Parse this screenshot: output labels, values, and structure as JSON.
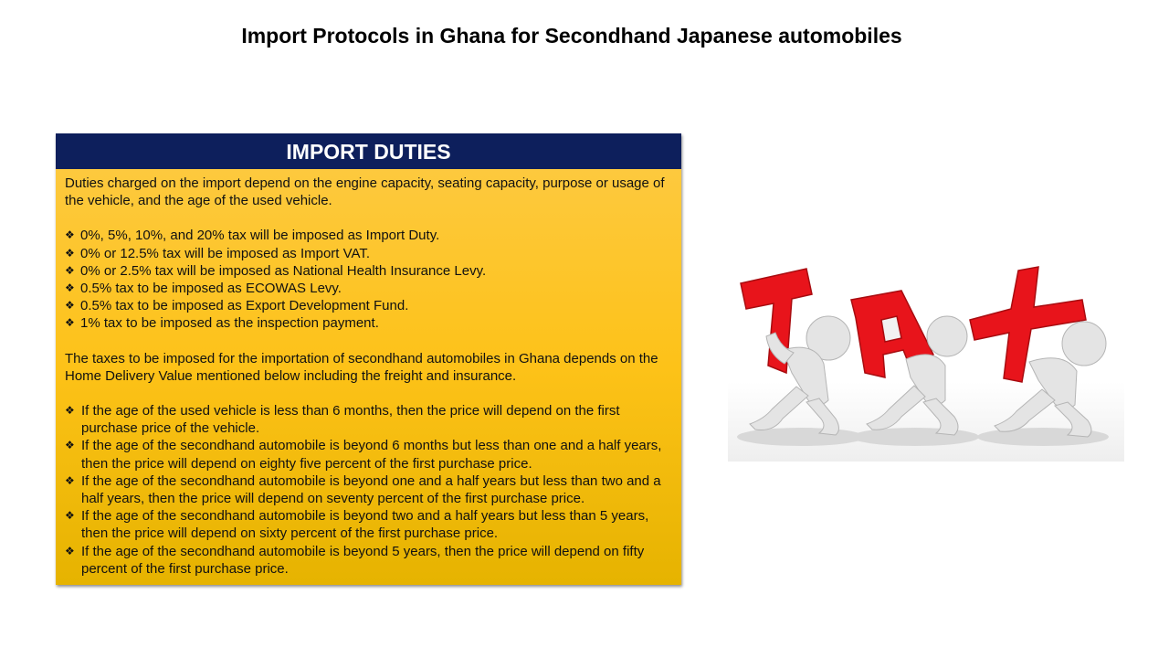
{
  "title": "Import Protocols in Ghana for Secondhand Japanese automobiles",
  "panel": {
    "header": "IMPORT DUTIES",
    "intro": "Duties charged on the import depend on the engine capacity, seating capacity, purpose or usage of the vehicle, and the age of the used vehicle.",
    "taxes": [
      "0%, 5%, 10%, and 20% tax will be imposed as Import Duty.",
      "0% or 12.5% tax will be imposed as Import VAT.",
      "0% or 2.5% tax will be imposed as National Health Insurance Levy.",
      "0.5% tax to be imposed as ECOWAS Levy.",
      "0.5% tax to be imposed as Export Development Fund.",
      "1% tax to be imposed as the inspection payment."
    ],
    "delivery_note": "The taxes to be imposed for the importation of secondhand automobiles in Ghana depends on the Home Delivery Value mentioned below including the freight and insurance.",
    "age_rules": [
      "If the age of the used vehicle is less than 6 months, then the price will depend on the first purchase price of the vehicle.",
      "If the age of the secondhand automobile is beyond 6 months but less than one and a half years, then the price will depend on eighty five percent of the first purchase price.",
      "If the age of the secondhand automobile is beyond one and a half years but less than two and a half years, then the price will depend on seventy percent of the first purchase price.",
      "If the age of the secondhand automobile is beyond two and a half years but less than 5 years, then the price will depend on sixty percent of the first purchase price.",
      "If the age of the secondhand automobile is beyond 5 years, then the price will depend on fifty percent of the first purchase price."
    ]
  },
  "illustration": {
    "letters": [
      "T",
      "A",
      "X"
    ],
    "letter_color": "#e8141b",
    "figure_color": "#e2e2e2"
  }
}
